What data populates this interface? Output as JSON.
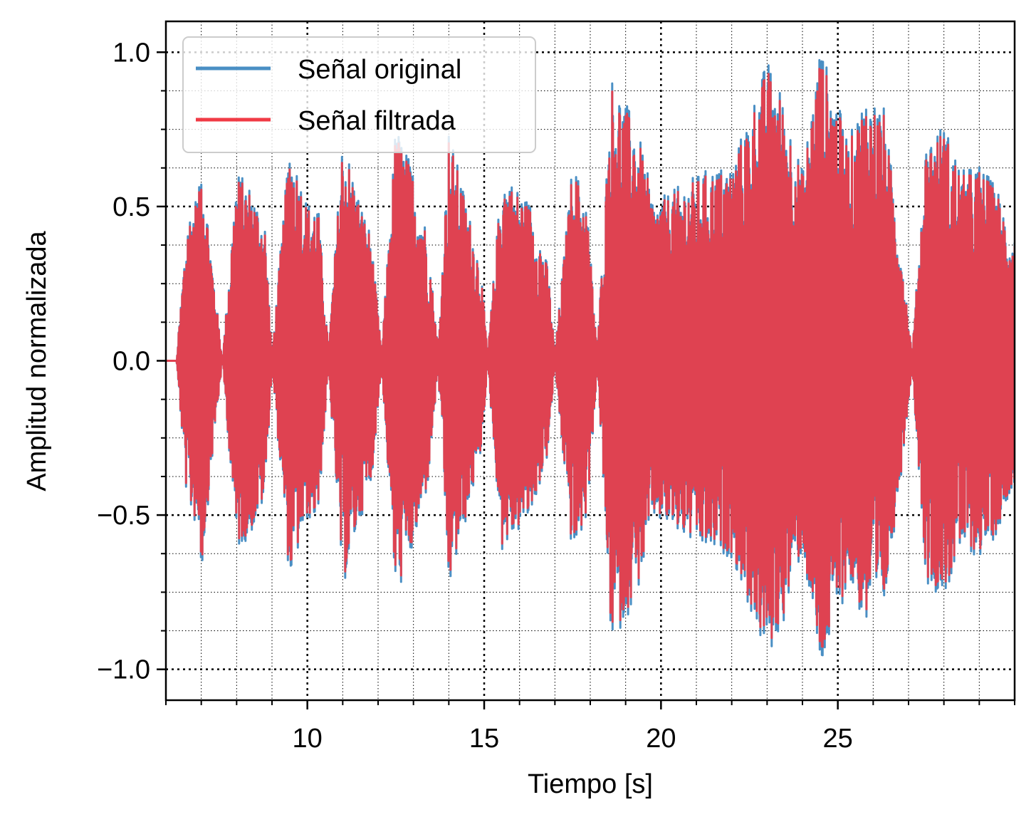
{
  "chart_data": {
    "type": "line",
    "title": "",
    "xlabel": "Tiempo [s]",
    "ylabel": "Amplitud normalizada",
    "xlim": [
      6.0,
      30.0
    ],
    "ylim": [
      -1.1,
      1.1
    ],
    "xticks": [
      10,
      15,
      20,
      25
    ],
    "xtick_labels": [
      "10",
      "15",
      "20",
      "25"
    ],
    "yticks": [
      1.0,
      0.5,
      0.0,
      -0.5,
      -1.0
    ],
    "ytick_labels": [
      "1.0",
      "0.5",
      "0.0",
      "−0.5",
      "−1.0"
    ],
    "x_minor_step": 1.0,
    "y_minor_step": 0.125,
    "grid": true,
    "legend_position": "upper-left",
    "series": [
      {
        "name": "Señal original",
        "color": "#4a8fc4"
      },
      {
        "name": "Señal filtrada",
        "color": "#f03a45"
      }
    ],
    "envelope_peaks": [
      {
        "x": 6.3,
        "y": 0.0
      },
      {
        "x": 6.6,
        "y": 0.45
      },
      {
        "x": 6.95,
        "y": 0.55
      },
      {
        "x": 7.0,
        "y": 0.68
      },
      {
        "x": 7.3,
        "y": 0.32
      },
      {
        "x": 7.6,
        "y": 0.0
      },
      {
        "x": 8.0,
        "y": 0.6
      },
      {
        "x": 8.4,
        "y": 0.55
      },
      {
        "x": 8.8,
        "y": 0.44
      },
      {
        "x": 9.0,
        "y": 0.02
      },
      {
        "x": 9.5,
        "y": 0.7
      },
      {
        "x": 10.0,
        "y": 0.5
      },
      {
        "x": 10.3,
        "y": 0.5
      },
      {
        "x": 10.6,
        "y": 0.03
      },
      {
        "x": 11.0,
        "y": 0.72
      },
      {
        "x": 11.5,
        "y": 0.5
      },
      {
        "x": 11.8,
        "y": 0.4
      },
      {
        "x": 12.1,
        "y": 0.02
      },
      {
        "x": 12.5,
        "y": 0.75
      },
      {
        "x": 13.0,
        "y": 0.6
      },
      {
        "x": 13.4,
        "y": 0.4
      },
      {
        "x": 13.7,
        "y": 0.03
      },
      {
        "x": 14.0,
        "y": 0.73
      },
      {
        "x": 14.5,
        "y": 0.5
      },
      {
        "x": 14.9,
        "y": 0.3
      },
      {
        "x": 15.1,
        "y": 0.02
      },
      {
        "x": 15.5,
        "y": 0.6
      },
      {
        "x": 16.3,
        "y": 0.5
      },
      {
        "x": 16.8,
        "y": 0.3
      },
      {
        "x": 17.0,
        "y": 0.02
      },
      {
        "x": 17.5,
        "y": 0.63
      },
      {
        "x": 17.9,
        "y": 0.5
      },
      {
        "x": 18.2,
        "y": 0.03
      },
      {
        "x": 18.6,
        "y": 0.9
      },
      {
        "x": 19.3,
        "y": 0.75
      },
      {
        "x": 19.8,
        "y": 0.5
      },
      {
        "x": 20.5,
        "y": 0.55
      },
      {
        "x": 21.2,
        "y": 0.6
      },
      {
        "x": 22.0,
        "y": 0.62
      },
      {
        "x": 23.0,
        "y": 0.95
      },
      {
        "x": 23.4,
        "y": 0.85
      },
      {
        "x": 24.0,
        "y": 0.6
      },
      {
        "x": 24.5,
        "y": 1.0
      },
      {
        "x": 25.3,
        "y": 0.7
      },
      {
        "x": 25.8,
        "y": 0.85
      },
      {
        "x": 26.3,
        "y": 0.8
      },
      {
        "x": 26.8,
        "y": 0.35
      },
      {
        "x": 27.1,
        "y": 0.02
      },
      {
        "x": 27.5,
        "y": 0.7
      },
      {
        "x": 28.0,
        "y": 0.75
      },
      {
        "x": 28.5,
        "y": 0.6
      },
      {
        "x": 29.0,
        "y": 0.62
      },
      {
        "x": 29.5,
        "y": 0.55
      },
      {
        "x": 29.9,
        "y": 0.4
      }
    ]
  }
}
